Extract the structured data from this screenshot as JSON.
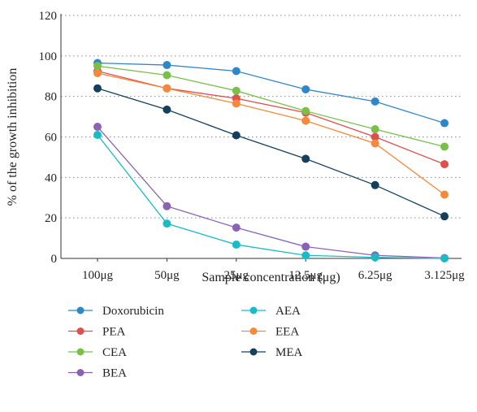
{
  "chart_data": {
    "type": "line",
    "title": "",
    "xlabel": "Sample concentration (μg)",
    "ylabel": "% of the growth inhibition",
    "ylim": [
      0,
      120
    ],
    "yticks": [
      0,
      20,
      40,
      60,
      80,
      100,
      120
    ],
    "grid": "horizontal dotted",
    "legend_position": "bottom",
    "categories": [
      "100μg",
      "50μg",
      "25μg",
      "12.5μg",
      "6.25μg",
      "3.125μg"
    ],
    "series": [
      {
        "name": "Doxorubicin",
        "color": "#2f87c8",
        "values": [
          96.5,
          95.5,
          92.5,
          83.5,
          77.5,
          66.8
        ]
      },
      {
        "name": "PEA",
        "color": "#e04e4e",
        "values": [
          92.5,
          84.0,
          79.0,
          72.0,
          60.0,
          46.5
        ]
      },
      {
        "name": "CEA",
        "color": "#79c04a",
        "values": [
          95.0,
          90.5,
          82.8,
          72.8,
          63.8,
          55.2
        ]
      },
      {
        "name": "BEA",
        "color": "#8a63b5",
        "values": [
          65.0,
          25.8,
          15.2,
          5.8,
          1.5,
          0.2
        ]
      },
      {
        "name": "AEA",
        "color": "#19bcc5",
        "values": [
          61.0,
          17.2,
          6.8,
          1.5,
          0.5,
          0.0
        ]
      },
      {
        "name": "EEA",
        "color": "#f4893c",
        "values": [
          91.5,
          84.0,
          76.5,
          68.0,
          56.8,
          31.5
        ]
      },
      {
        "name": "MEA",
        "color": "#14405e",
        "values": [
          84.0,
          73.5,
          60.8,
          49.2,
          36.2,
          20.8
        ]
      }
    ]
  }
}
